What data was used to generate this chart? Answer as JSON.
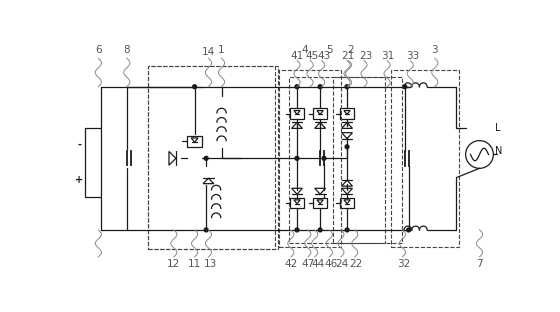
{
  "bg_color": "#ffffff",
  "line_color": "#1a1a1a",
  "fig_width": 5.6,
  "fig_height": 3.12,
  "dpi": 100,
  "label_color": "#555555",
  "wavy_color": "#888888"
}
